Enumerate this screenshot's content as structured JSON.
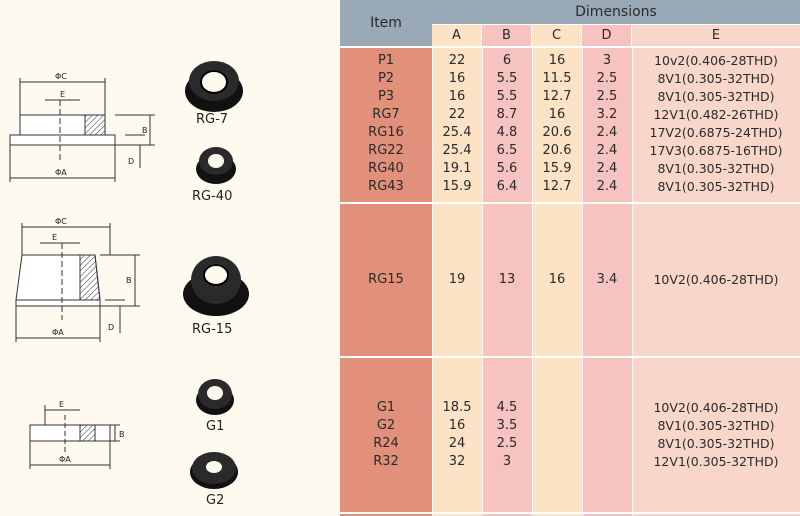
{
  "table": {
    "header_item": "Item",
    "header_dimensions": "Dimensions",
    "columns": [
      "A",
      "B",
      "C",
      "D",
      "E"
    ]
  },
  "groups": [
    {
      "rows": [
        {
          "item": "P1",
          "a": "22",
          "b": "6",
          "c": "16",
          "d": "3",
          "e": "10v2(0.406-28THD)"
        },
        {
          "item": "P2",
          "a": "16",
          "b": "5.5",
          "c": "11.5",
          "d": "2.5",
          "e": "8V1(0.305-32THD)"
        },
        {
          "item": "P3",
          "a": "16",
          "b": "5.5",
          "c": "12.7",
          "d": "2.5",
          "e": "8V1(0.305-32THD)"
        },
        {
          "item": "RG7",
          "a": "22",
          "b": "8.7",
          "c": "16",
          "d": "3.2",
          "e": "12V1(0.482-26THD)"
        },
        {
          "item": "RG16",
          "a": "25.4",
          "b": "4.8",
          "c": "20.6",
          "d": "2.4",
          "e": "17V2(0.6875-24THD)"
        },
        {
          "item": "RG22",
          "a": "25.4",
          "b": "6.5",
          "c": "20.6",
          "d": "2.4",
          "e": "17V3(0.6875-16THD)"
        },
        {
          "item": "RG40",
          "a": "19.1",
          "b": "5.6",
          "c": "15.9",
          "d": "2.4",
          "e": "8V1(0.305-32THD)"
        },
        {
          "item": "RG43",
          "a": "15.9",
          "b": "6.4",
          "c": "12.7",
          "d": "2.4",
          "e": "8V1(0.305-32THD)"
        }
      ]
    },
    {
      "rows": [
        {
          "item": "RG15",
          "a": "19",
          "b": "13",
          "c": "16",
          "d": "3.4",
          "e": "10V2(0.406-28THD)"
        }
      ]
    },
    {
      "rows": [
        {
          "item": "G1",
          "a": "18.5",
          "b": "4.5",
          "c": "",
          "d": "",
          "e": "10V2(0.406-28THD)"
        },
        {
          "item": "G2",
          "a": "16",
          "b": "3.5",
          "c": "",
          "d": "",
          "e": "8V1(0.305-32THD)"
        },
        {
          "item": "R24",
          "a": "24",
          "b": "2.5",
          "c": "",
          "d": "",
          "e": "8V1(0.305-32THD)"
        },
        {
          "item": "R32",
          "a": "32",
          "b": "3",
          "c": "",
          "d": "",
          "e": "12V1(0.305-32THD)"
        }
      ]
    }
  ],
  "products": {
    "rg7": "RG-7",
    "rg40": "RG-40",
    "rg15": "RG-15",
    "g1": "G1",
    "g2": "G2"
  },
  "drawings": {
    "dim_phi_c": "ΦC",
    "dim_phi_a": "ΦA",
    "dim_e": "E",
    "dim_b": "B",
    "dim_d": "D"
  }
}
